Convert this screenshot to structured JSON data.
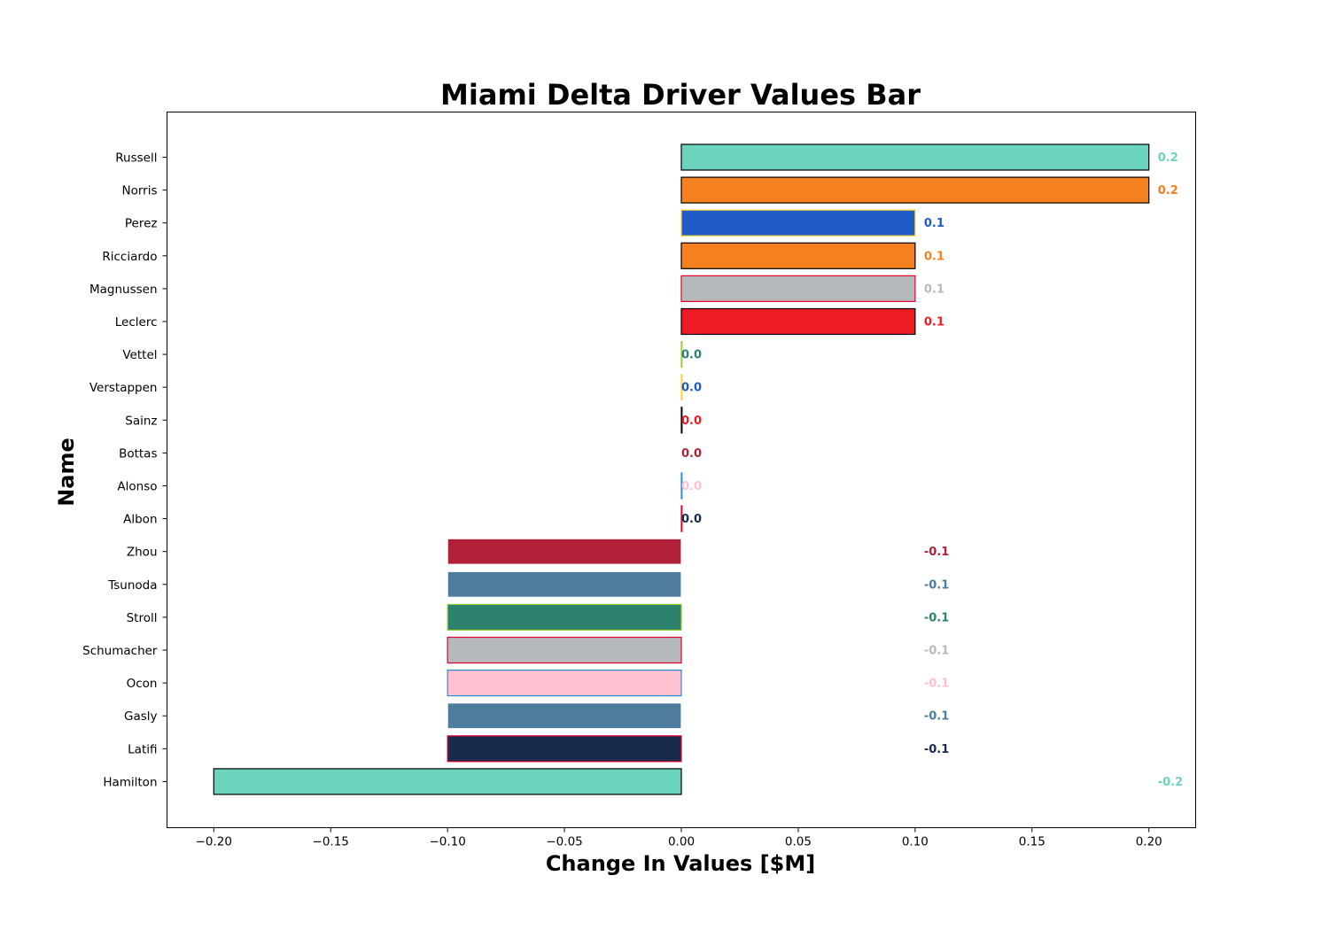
{
  "chart_data": {
    "type": "bar",
    "orientation": "horizontal",
    "title": "Miami Delta Driver Values Bar",
    "xlabel": "Change In Values [$M]",
    "ylabel": "Name",
    "xlim": [
      -0.22,
      0.22
    ],
    "xticks": [
      -0.2,
      -0.15,
      -0.1,
      -0.05,
      0.0,
      0.05,
      0.1,
      0.15,
      0.2
    ],
    "xtick_labels": [
      "−0.20",
      "−0.15",
      "−0.10",
      "−0.05",
      "0.00",
      "0.05",
      "0.10",
      "0.15",
      "0.20"
    ],
    "grid": false,
    "bars": [
      {
        "name": "Russell",
        "value": 0.2,
        "label": "0.2",
        "fill": "#6CD3BF",
        "edge": "#000000"
      },
      {
        "name": "Norris",
        "value": 0.2,
        "label": "0.2",
        "fill": "#F58020",
        "edge": "#000000"
      },
      {
        "name": "Perez",
        "value": 0.1,
        "label": "0.1",
        "fill": "#1E5BC6",
        "edge": "#FFD12E"
      },
      {
        "name": "Ricciardo",
        "value": 0.1,
        "label": "0.1",
        "fill": "#F58020",
        "edge": "#000000"
      },
      {
        "name": "Magnussen",
        "value": 0.1,
        "label": "0.1",
        "fill": "#B6BABD",
        "edge": "#E6002B"
      },
      {
        "name": "Leclerc",
        "value": 0.1,
        "label": "0.1",
        "fill": "#ED1C24",
        "edge": "#000000"
      },
      {
        "name": "Vettel",
        "value": 0.0,
        "label": "0.0",
        "fill": "#2D826D",
        "edge": "#9ACD32"
      },
      {
        "name": "Verstappen",
        "value": 0.0,
        "label": "0.0",
        "fill": "#1E5BC6",
        "edge": "#FFD12E"
      },
      {
        "name": "Sainz",
        "value": 0.0,
        "label": "0.0",
        "fill": "#ED1C24",
        "edge": "#000000"
      },
      {
        "name": "Bottas",
        "value": 0.0,
        "label": "0.0",
        "fill": "#B12039",
        "edge": "#FFFFFF"
      },
      {
        "name": "Alonso",
        "value": 0.0,
        "label": "0.0",
        "fill": "#FFC0CF",
        "edge": "#2B8CD6"
      },
      {
        "name": "Albon",
        "value": 0.0,
        "label": "0.0",
        "fill": "#1A2A4A",
        "edge": "#E6002B"
      },
      {
        "name": "Zhou",
        "value": -0.1,
        "label": "-0.1",
        "fill": "#B12039",
        "edge": "#FFFFFF"
      },
      {
        "name": "Tsunoda",
        "value": -0.1,
        "label": "-0.1",
        "fill": "#4E7C9B",
        "edge": "#FFFFFF"
      },
      {
        "name": "Stroll",
        "value": -0.1,
        "label": "-0.1",
        "fill": "#2D826D",
        "edge": "#9ACD32"
      },
      {
        "name": "Schumacher",
        "value": -0.1,
        "label": "-0.1",
        "fill": "#B6BABD",
        "edge": "#E6002B"
      },
      {
        "name": "Ocon",
        "value": -0.1,
        "label": "-0.1",
        "fill": "#FFC0CF",
        "edge": "#2B8CD6"
      },
      {
        "name": "Gasly",
        "value": -0.1,
        "label": "-0.1",
        "fill": "#4E7C9B",
        "edge": "#FFFFFF"
      },
      {
        "name": "Latifi",
        "value": -0.1,
        "label": "-0.1",
        "fill": "#1A2A4A",
        "edge": "#E6002B"
      },
      {
        "name": "Hamilton",
        "value": -0.2,
        "label": "-0.2",
        "fill": "#6CD3BF",
        "edge": "#000000"
      }
    ]
  }
}
